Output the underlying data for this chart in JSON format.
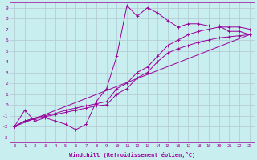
{
  "xlabel": "Windchill (Refroidissement éolien,°C)",
  "xlim": [
    -0.5,
    23.5
  ],
  "ylim": [
    -3.5,
    9.5
  ],
  "xticks": [
    0,
    1,
    2,
    3,
    4,
    5,
    6,
    7,
    8,
    9,
    10,
    11,
    12,
    13,
    14,
    15,
    16,
    17,
    18,
    19,
    20,
    21,
    22,
    23
  ],
  "yticks": [
    -3,
    -2,
    -1,
    0,
    1,
    2,
    3,
    4,
    5,
    6,
    7,
    8,
    9
  ],
  "bg_color": "#c8eef0",
  "grid_color": "#b0c8d0",
  "line_color": "#990099",
  "series": [
    {
      "x": [
        0,
        1,
        2,
        3,
        4,
        5,
        6,
        7,
        8,
        9,
        10,
        11,
        12,
        13,
        14,
        15,
        16,
        17,
        18,
        19,
        20,
        21,
        22,
        23
      ],
      "y": [
        -2.0,
        -0.5,
        -1.5,
        -1.2,
        -1.5,
        -1.8,
        -2.3,
        -1.8,
        0.3,
        1.5,
        4.5,
        9.2,
        8.2,
        9.0,
        8.5,
        7.8,
        7.2,
        7.5,
        7.5,
        7.3,
        7.3,
        6.8,
        6.8,
        6.5
      ],
      "has_markers": true
    },
    {
      "x": [
        0,
        23
      ],
      "y": [
        -2.0,
        6.5
      ],
      "has_markers": false
    },
    {
      "x": [
        0,
        1,
        2,
        3,
        4,
        5,
        6,
        7,
        8,
        9,
        10,
        11,
        12,
        13,
        14,
        15,
        16,
        17,
        18,
        19,
        20,
        21,
        22,
        23
      ],
      "y": [
        -2.0,
        -1.5,
        -1.3,
        -1.1,
        -0.9,
        -0.7,
        -0.5,
        -0.3,
        -0.1,
        0.0,
        1.0,
        1.5,
        2.5,
        3.0,
        4.0,
        4.8,
        5.2,
        5.5,
        5.8,
        6.0,
        6.2,
        6.3,
        6.4,
        6.5
      ],
      "has_markers": true
    },
    {
      "x": [
        0,
        1,
        2,
        3,
        4,
        5,
        6,
        7,
        8,
        9,
        10,
        11,
        12,
        13,
        14,
        15,
        16,
        17,
        18,
        19,
        20,
        21,
        22,
        23
      ],
      "y": [
        -2.0,
        -1.5,
        -1.2,
        -1.0,
        -0.8,
        -0.5,
        -0.3,
        -0.1,
        0.1,
        0.3,
        1.5,
        2.0,
        3.0,
        3.5,
        4.5,
        5.5,
        6.0,
        6.5,
        6.8,
        7.0,
        7.2,
        7.2,
        7.2,
        7.0
      ],
      "has_markers": true
    }
  ]
}
